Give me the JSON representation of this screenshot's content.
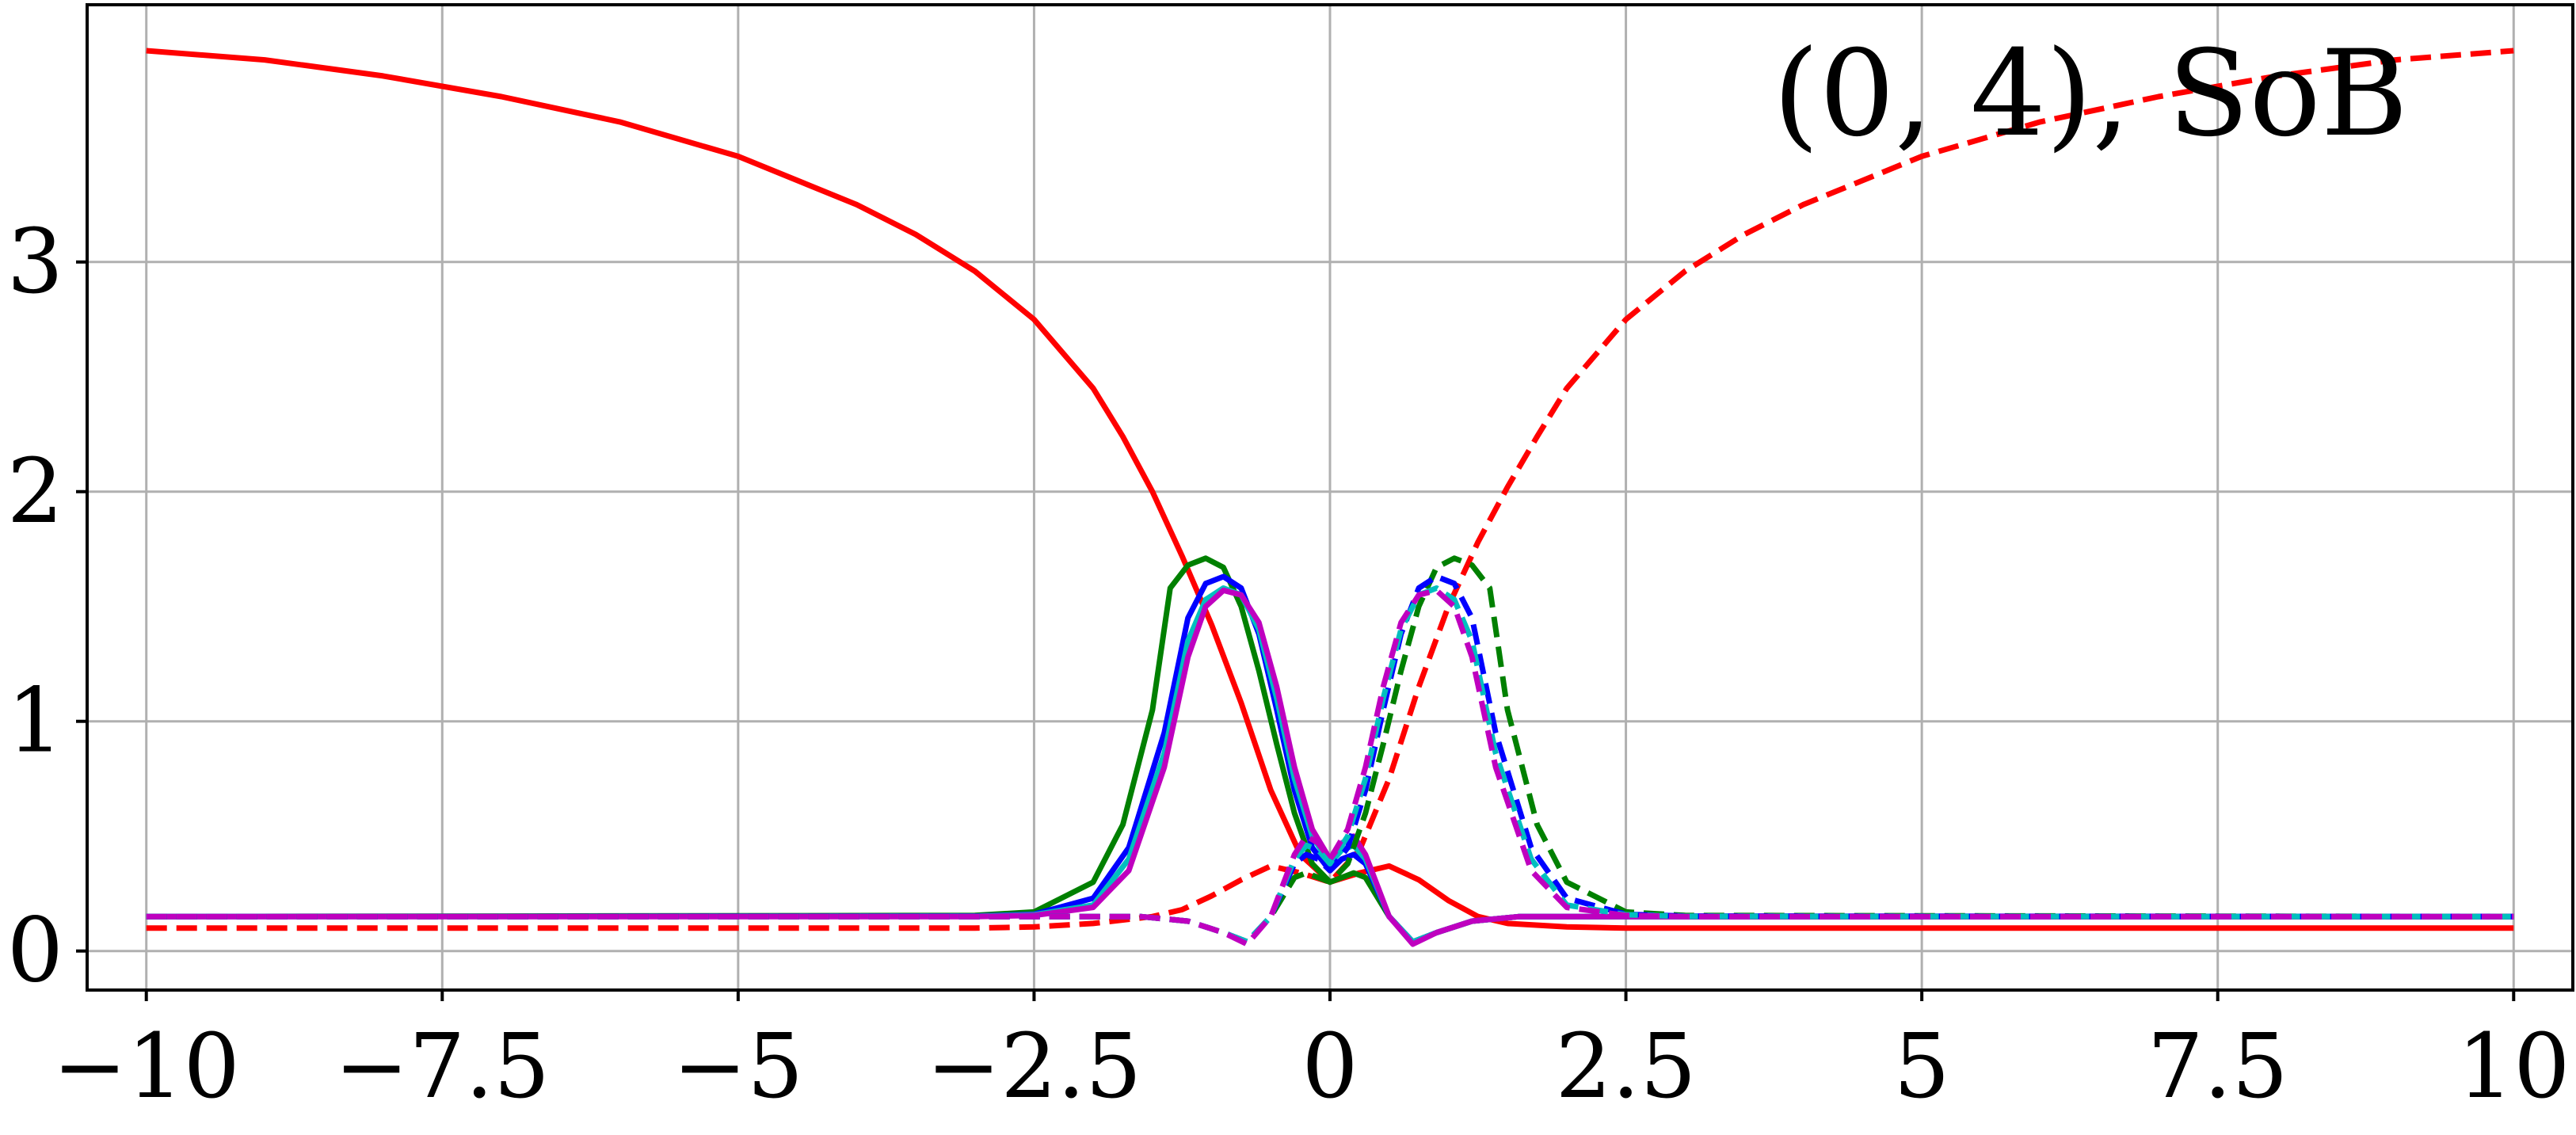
{
  "chart_data": {
    "type": "line",
    "title": "",
    "xlabel": "",
    "ylabel": "",
    "annotation": "(0, 4), SoB",
    "xlim": [
      -10.5,
      10.5
    ],
    "ylim": [
      -0.17,
      4.12
    ],
    "grid": true,
    "xticks": [
      -10,
      -7.5,
      -5,
      -2.5,
      0,
      2.5,
      5,
      7.5,
      10
    ],
    "xtick_labels": [
      "−10",
      "−7.5",
      "−5",
      "−2.5",
      "0",
      "2.5",
      "5",
      "7.5",
      "10"
    ],
    "yticks": [
      0,
      1,
      2,
      3
    ],
    "ytick_labels": [
      "0",
      "1",
      "2",
      "3"
    ],
    "series": [
      {
        "color": "#ff0000",
        "style": "solid",
        "x": [
          -10,
          -9,
          -8,
          -7,
          -6,
          -5,
          -4,
          -3.5,
          -3,
          -2.5,
          -2,
          -1.75,
          -1.5,
          -1.25,
          -1,
          -0.75,
          -0.5,
          -0.25,
          0,
          0.25,
          0.5,
          0.75,
          1,
          1.25,
          1.5,
          2,
          2.5,
          3,
          4,
          10
        ],
        "y": [
          3.92,
          3.88,
          3.81,
          3.72,
          3.61,
          3.46,
          3.25,
          3.12,
          2.96,
          2.75,
          2.45,
          2.24,
          2.0,
          1.72,
          1.42,
          1.08,
          0.7,
          0.42,
          0.3,
          0.34,
          0.37,
          0.31,
          0.22,
          0.15,
          0.12,
          0.105,
          0.1,
          0.1,
          0.1,
          0.1
        ]
      },
      {
        "color": "#ff0000",
        "style": "dashed",
        "x": [
          -10,
          -4,
          -3,
          -2.5,
          -2,
          -1.5,
          -1.25,
          -1,
          -0.75,
          -0.5,
          -0.25,
          0,
          0.25,
          0.5,
          0.75,
          1,
          1.25,
          1.5,
          1.75,
          2,
          2.5,
          3,
          3.5,
          4,
          5,
          6,
          7,
          8,
          9,
          10
        ],
        "y": [
          0.1,
          0.1,
          0.1,
          0.105,
          0.12,
          0.15,
          0.18,
          0.24,
          0.31,
          0.37,
          0.34,
          0.3,
          0.44,
          0.75,
          1.15,
          1.5,
          1.78,
          2.02,
          2.24,
          2.45,
          2.75,
          2.96,
          3.12,
          3.25,
          3.46,
          3.61,
          3.72,
          3.81,
          3.88,
          3.92
        ]
      },
      {
        "color": "#008000",
        "style": "solid",
        "x": [
          -10,
          -3,
          -2.5,
          -2,
          -1.75,
          -1.5,
          -1.35,
          -1.2,
          -1.05,
          -0.9,
          -0.75,
          -0.6,
          -0.45,
          -0.3,
          -0.15,
          0,
          0.1,
          0.2,
          0.3,
          0.5,
          0.7,
          0.9,
          1.2,
          1.6,
          2,
          3,
          10
        ],
        "y": [
          0.15,
          0.155,
          0.17,
          0.3,
          0.55,
          1.05,
          1.58,
          1.68,
          1.71,
          1.67,
          1.5,
          1.22,
          0.9,
          0.6,
          0.38,
          0.3,
          0.32,
          0.34,
          0.32,
          0.15,
          0.04,
          0.08,
          0.13,
          0.15,
          0.15,
          0.15,
          0.15
        ]
      },
      {
        "color": "#0000ff",
        "style": "solid",
        "x": [
          -10,
          -3,
          -2.5,
          -2,
          -1.7,
          -1.4,
          -1.2,
          -1.05,
          -0.9,
          -0.75,
          -0.6,
          -0.45,
          -0.3,
          -0.15,
          0,
          0.1,
          0.2,
          0.3,
          0.5,
          0.7,
          0.9,
          1.2,
          1.6,
          2,
          3,
          10
        ],
        "y": [
          0.15,
          0.152,
          0.16,
          0.23,
          0.45,
          0.95,
          1.45,
          1.6,
          1.63,
          1.58,
          1.38,
          1.05,
          0.7,
          0.45,
          0.35,
          0.4,
          0.42,
          0.38,
          0.15,
          0.04,
          0.08,
          0.13,
          0.15,
          0.15,
          0.15,
          0.15
        ]
      },
      {
        "color": "#00bfbf",
        "style": "solid",
        "x": [
          -10,
          -3,
          -2.5,
          -2,
          -1.7,
          -1.4,
          -1.2,
          -1.05,
          -0.9,
          -0.75,
          -0.6,
          -0.45,
          -0.3,
          -0.15,
          0,
          0.1,
          0.2,
          0.3,
          0.5,
          0.7,
          0.9,
          1.2,
          1.6,
          2,
          3,
          10
        ],
        "y": [
          0.15,
          0.151,
          0.158,
          0.2,
          0.4,
          0.86,
          1.35,
          1.53,
          1.58,
          1.55,
          1.4,
          1.1,
          0.75,
          0.5,
          0.38,
          0.44,
          0.46,
          0.4,
          0.15,
          0.04,
          0.08,
          0.13,
          0.15,
          0.15,
          0.15,
          0.15
        ]
      },
      {
        "color": "#bf00bf",
        "style": "solid",
        "x": [
          -10,
          -3,
          -2.5,
          -2,
          -1.7,
          -1.4,
          -1.2,
          -1.05,
          -0.9,
          -0.75,
          -0.6,
          -0.45,
          -0.3,
          -0.15,
          0,
          0.1,
          0.2,
          0.3,
          0.5,
          0.7,
          0.9,
          1.2,
          1.6,
          2,
          3,
          10
        ],
        "y": [
          0.15,
          0.15,
          0.155,
          0.19,
          0.35,
          0.8,
          1.28,
          1.5,
          1.57,
          1.55,
          1.43,
          1.15,
          0.8,
          0.53,
          0.4,
          0.47,
          0.5,
          0.42,
          0.15,
          0.03,
          0.08,
          0.13,
          0.15,
          0.15,
          0.15,
          0.15
        ]
      },
      {
        "color": "#008000",
        "style": "dashed",
        "x": [
          -10,
          -3,
          -2,
          -1.6,
          -1.2,
          -0.9,
          -0.7,
          -0.5,
          -0.3,
          -0.2,
          -0.1,
          0,
          0.15,
          0.3,
          0.45,
          0.6,
          0.75,
          0.9,
          1.05,
          1.2,
          1.35,
          1.5,
          1.75,
          2,
          2.5,
          3,
          10
        ],
        "y": [
          0.15,
          0.15,
          0.15,
          0.15,
          0.13,
          0.08,
          0.04,
          0.15,
          0.32,
          0.34,
          0.32,
          0.3,
          0.38,
          0.6,
          0.9,
          1.22,
          1.5,
          1.67,
          1.71,
          1.68,
          1.58,
          1.05,
          0.55,
          0.3,
          0.17,
          0.155,
          0.15
        ]
      },
      {
        "color": "#0000ff",
        "style": "dashed",
        "x": [
          -10,
          -3,
          -2,
          -1.6,
          -1.2,
          -0.9,
          -0.7,
          -0.5,
          -0.3,
          -0.2,
          -0.1,
          0,
          0.15,
          0.3,
          0.45,
          0.6,
          0.75,
          0.9,
          1.05,
          1.2,
          1.4,
          1.7,
          2,
          2.5,
          3,
          10
        ],
        "y": [
          0.15,
          0.15,
          0.15,
          0.15,
          0.13,
          0.08,
          0.04,
          0.15,
          0.38,
          0.42,
          0.4,
          0.35,
          0.45,
          0.7,
          1.05,
          1.38,
          1.58,
          1.63,
          1.6,
          1.45,
          0.95,
          0.45,
          0.23,
          0.16,
          0.152,
          0.15
        ]
      },
      {
        "color": "#00bfbf",
        "style": "dashed",
        "x": [
          -10,
          -3,
          -2,
          -1.6,
          -1.2,
          -0.9,
          -0.7,
          -0.5,
          -0.3,
          -0.2,
          -0.1,
          0,
          0.15,
          0.3,
          0.45,
          0.6,
          0.75,
          0.9,
          1.05,
          1.2,
          1.4,
          1.7,
          2,
          2.5,
          3,
          10
        ],
        "y": [
          0.15,
          0.15,
          0.15,
          0.15,
          0.13,
          0.08,
          0.04,
          0.15,
          0.4,
          0.46,
          0.44,
          0.38,
          0.5,
          0.75,
          1.1,
          1.4,
          1.55,
          1.58,
          1.53,
          1.35,
          0.86,
          0.4,
          0.2,
          0.158,
          0.151,
          0.15
        ]
      },
      {
        "color": "#bf00bf",
        "style": "dashed",
        "x": [
          -10,
          -3,
          -2,
          -1.6,
          -1.2,
          -0.9,
          -0.7,
          -0.5,
          -0.3,
          -0.2,
          -0.1,
          0,
          0.15,
          0.3,
          0.45,
          0.6,
          0.75,
          0.9,
          1.05,
          1.2,
          1.4,
          1.7,
          2,
          2.5,
          3,
          10
        ],
        "y": [
          0.15,
          0.15,
          0.15,
          0.15,
          0.13,
          0.08,
          0.03,
          0.15,
          0.42,
          0.5,
          0.47,
          0.4,
          0.53,
          0.8,
          1.15,
          1.43,
          1.55,
          1.57,
          1.5,
          1.28,
          0.8,
          0.35,
          0.19,
          0.155,
          0.15,
          0.15
        ]
      }
    ]
  }
}
